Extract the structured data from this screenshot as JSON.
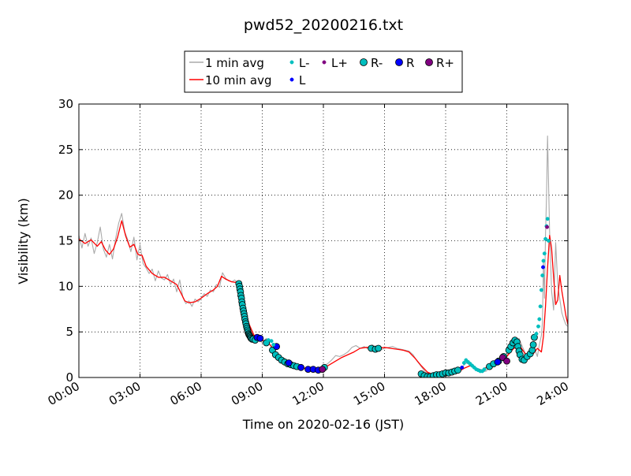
{
  "chart_data": {
    "type": "line",
    "title": "pwd52_20200216.txt",
    "xlabel": "Time on 2020-02-16 (JST)",
    "ylabel": "Visibility (km)",
    "xlim": [
      0,
      24
    ],
    "ylim": [
      0,
      30
    ],
    "grid": true,
    "legend_placement": "top-center",
    "x_ticks": [
      {
        "value": 0,
        "label": "00:00"
      },
      {
        "value": 3,
        "label": "03:00"
      },
      {
        "value": 6,
        "label": "06:00"
      },
      {
        "value": 9,
        "label": "09:00"
      },
      {
        "value": 12,
        "label": "12:00"
      },
      {
        "value": 15,
        "label": "15:00"
      },
      {
        "value": 18,
        "label": "18:00"
      },
      {
        "value": 21,
        "label": "21:00"
      },
      {
        "value": 24,
        "label": "24:00"
      }
    ],
    "y_ticks": [
      {
        "value": 0,
        "label": "0"
      },
      {
        "value": 5,
        "label": "5"
      },
      {
        "value": 10,
        "label": "10"
      },
      {
        "value": 15,
        "label": "15"
      },
      {
        "value": 20,
        "label": "20"
      },
      {
        "value": 25,
        "label": "25"
      },
      {
        "value": 30,
        "label": "30"
      }
    ],
    "legend": [
      {
        "key": "avg1",
        "label": "1 min avg",
        "kind": "line",
        "color": "#aaaaaa"
      },
      {
        "key": "avg10",
        "label": "10 min avg",
        "kind": "line",
        "color": "#ff0000"
      },
      {
        "key": "Lm",
        "label": "L-",
        "kind": "small",
        "color": "#00bfbf"
      },
      {
        "key": "L",
        "label": "L",
        "kind": "small",
        "color": "#0000ff"
      },
      {
        "key": "Lp",
        "label": "L+",
        "kind": "small",
        "color": "#800080"
      },
      {
        "key": "Rm",
        "label": "R-",
        "kind": "big",
        "color": "#00bfbf"
      },
      {
        "key": "R",
        "label": "R",
        "kind": "big",
        "color": "#0000ff"
      },
      {
        "key": "Rp",
        "label": "R+",
        "kind": "big",
        "color": "#800080"
      }
    ],
    "series": [
      {
        "name": "1 min avg",
        "color": "#aaaaaa",
        "x": [
          0,
          0.15,
          0.3,
          0.45,
          0.6,
          0.75,
          0.9,
          1.05,
          1.2,
          1.35,
          1.5,
          1.65,
          1.8,
          1.95,
          2.1,
          2.25,
          2.4,
          2.55,
          2.7,
          2.85,
          3.0,
          3.15,
          3.3,
          3.45,
          3.6,
          3.75,
          3.9,
          4.05,
          4.2,
          4.35,
          4.5,
          4.65,
          4.8,
          4.95,
          5.1,
          5.25,
          5.4,
          5.55,
          5.7,
          5.85,
          6.0,
          6.15,
          6.3,
          6.45,
          6.6,
          6.75,
          6.9,
          7.05,
          7.2,
          7.35,
          7.5,
          7.65,
          7.8,
          7.95,
          8.1,
          8.25,
          8.4,
          8.55,
          8.7,
          8.85,
          9.0,
          9.2,
          9.4,
          9.6,
          9.8,
          10.0,
          10.2,
          10.4,
          10.6,
          10.8,
          11.0,
          11.2,
          11.4,
          11.6,
          11.8,
          12.0,
          12.2,
          12.4,
          12.6,
          12.8,
          13.0,
          13.2,
          13.4,
          13.6,
          13.8,
          14.0,
          14.2,
          14.4,
          14.6,
          14.8,
          15.0,
          15.2,
          15.4,
          15.6,
          15.8,
          16.0,
          16.2,
          16.4,
          16.6,
          16.8,
          17.0,
          17.2,
          17.4,
          17.6,
          17.8,
          18.0,
          18.2,
          18.4,
          18.6,
          18.8,
          19.0,
          19.2,
          19.4,
          19.6,
          19.8,
          20.0,
          20.2,
          20.4,
          20.6,
          20.8,
          21.0,
          21.2,
          21.4,
          21.6,
          21.8,
          22.0,
          22.1,
          22.2,
          22.3,
          22.4,
          22.5,
          22.6,
          22.7,
          22.75,
          22.8,
          22.85,
          22.9,
          22.95,
          23.0,
          23.1,
          23.2,
          23.3,
          23.4,
          23.5,
          23.6,
          23.7,
          23.8,
          23.9,
          24.0
        ],
        "values": [
          15.6,
          14.2,
          15.8,
          14.4,
          15.3,
          13.6,
          14.8,
          16.5,
          14.1,
          13.2,
          14.6,
          13.0,
          15.2,
          16.9,
          18.0,
          16.0,
          15.1,
          13.8,
          15.4,
          12.9,
          14.6,
          12.5,
          12.0,
          11.4,
          11.9,
          10.6,
          11.7,
          10.9,
          10.7,
          11.3,
          10.2,
          10.8,
          9.4,
          10.7,
          8.8,
          8.1,
          8.4,
          7.8,
          8.6,
          8.3,
          8.7,
          9.2,
          8.9,
          9.6,
          9.4,
          10.2,
          9.9,
          11.5,
          10.9,
          10.6,
          10.5,
          10.7,
          10.3,
          9.6,
          7.4,
          6.3,
          5.0,
          4.5,
          4.7,
          4.2,
          3.8,
          4.3,
          3.5,
          2.6,
          2.1,
          1.8,
          1.6,
          1.4,
          1.1,
          1.0,
          1.0,
          0.9,
          0.8,
          0.7,
          0.8,
          1.2,
          1.5,
          1.9,
          2.4,
          2.3,
          2.5,
          2.8,
          3.3,
          3.5,
          3.2,
          3.4,
          3.1,
          3.6,
          3.3,
          3.0,
          3.2,
          3.3,
          3.4,
          3.2,
          3.1,
          3.0,
          2.9,
          2.5,
          1.8,
          1.2,
          0.6,
          0.4,
          0.2,
          0.1,
          0.1,
          0.2,
          0.3,
          0.4,
          0.7,
          1.1,
          1.6,
          1.4,
          1.0,
          0.8,
          0.6,
          0.7,
          1.4,
          1.8,
          1.7,
          2.1,
          2.4,
          3.1,
          3.8,
          4.3,
          3.2,
          2.2,
          2.0,
          2.6,
          3.4,
          2.9,
          2.3,
          3.6,
          4.6,
          6.0,
          12.8,
          8.7,
          15.6,
          19.9,
          26.5,
          16.0,
          9.5,
          7.4,
          14.8,
          10.2,
          8.6,
          7.1,
          6.4,
          5.8,
          5.6
        ]
      },
      {
        "name": "10 min avg",
        "color": "#ff0000",
        "x": [
          0,
          0.3,
          0.6,
          0.9,
          1.1,
          1.3,
          1.5,
          1.7,
          1.9,
          2.1,
          2.3,
          2.5,
          2.7,
          2.9,
          3.1,
          3.3,
          3.6,
          3.9,
          4.2,
          4.5,
          4.8,
          5.0,
          5.2,
          5.4,
          5.7,
          6.0,
          6.3,
          6.6,
          6.8,
          7.0,
          7.2,
          7.5,
          7.8,
          8.0,
          8.2,
          8.4,
          8.6,
          8.8,
          9.0,
          9.3,
          9.6,
          9.9,
          10.2,
          10.5,
          10.8,
          11.1,
          11.4,
          11.7,
          12.0,
          12.3,
          12.6,
          12.9,
          13.2,
          13.5,
          13.8,
          14.1,
          14.4,
          14.7,
          15.0,
          15.3,
          15.6,
          15.9,
          16.2,
          16.5,
          16.8,
          17.1,
          17.4,
          17.7,
          18.0,
          18.3,
          18.6,
          18.9,
          19.2,
          19.5,
          19.8,
          20.1,
          20.4,
          20.7,
          21.0,
          21.3,
          21.6,
          21.9,
          22.2,
          22.5,
          22.7,
          22.8,
          22.9,
          23.0,
          23.1,
          23.2,
          23.3,
          23.4,
          23.5,
          23.6,
          23.7,
          23.8,
          23.9,
          24.0
        ],
        "values": [
          15.2,
          14.7,
          15.1,
          14.4,
          14.9,
          14.0,
          13.5,
          14.1,
          15.4,
          17.2,
          15.5,
          14.3,
          14.6,
          13.5,
          13.4,
          12.2,
          11.4,
          11.0,
          11.0,
          10.6,
          10.2,
          9.3,
          8.4,
          8.2,
          8.3,
          8.7,
          9.2,
          9.6,
          10.0,
          11.1,
          10.8,
          10.5,
          10.4,
          8.7,
          6.9,
          5.6,
          4.6,
          4.4,
          4.1,
          3.8,
          3.0,
          2.2,
          1.8,
          1.5,
          1.3,
          1.0,
          0.9,
          0.8,
          1.0,
          1.4,
          1.8,
          2.2,
          2.5,
          2.8,
          3.2,
          3.3,
          3.3,
          3.2,
          3.3,
          3.2,
          3.1,
          3.0,
          2.8,
          2.1,
          1.3,
          0.6,
          0.3,
          0.2,
          0.2,
          0.3,
          0.6,
          1.0,
          1.3,
          1.0,
          0.8,
          1.3,
          1.7,
          1.9,
          2.3,
          3.1,
          3.6,
          2.6,
          2.3,
          3.2,
          2.8,
          4.5,
          7.8,
          12.0,
          15.6,
          14.2,
          11.0,
          8.0,
          8.5,
          11.2,
          9.5,
          8.2,
          6.8,
          5.8
        ]
      }
    ],
    "markers": [
      {
        "type": "Rm",
        "x": [
          7.85,
          7.88,
          7.9,
          7.93,
          7.95,
          7.98,
          8.0,
          8.02,
          8.05,
          8.08,
          8.1,
          8.13,
          8.15,
          8.18,
          8.2,
          8.23,
          8.25,
          8.28,
          8.3,
          8.33,
          8.35,
          8.38,
          8.4,
          8.43,
          8.45,
          8.5,
          8.55,
          8.65,
          9.2,
          9.5,
          9.65,
          9.8,
          9.95,
          10.1,
          10.25,
          10.4,
          10.55,
          10.7,
          12.05,
          14.35,
          14.55,
          14.7,
          16.8,
          16.95,
          17.1,
          17.25,
          17.4,
          17.55,
          17.7,
          17.85,
          18.0,
          18.15,
          18.3,
          18.45,
          18.6,
          20.15,
          20.35,
          20.6,
          20.85,
          21.1,
          21.2,
          21.3,
          21.4,
          21.5,
          21.55,
          21.6,
          21.65,
          21.75,
          21.85,
          22.0,
          22.15,
          22.25,
          22.3,
          22.35
        ],
        "y": [
          10.3,
          10.0,
          9.7,
          9.4,
          9.0,
          8.7,
          8.3,
          8.0,
          7.6,
          7.3,
          7.0,
          6.7,
          6.4,
          6.1,
          5.9,
          5.6,
          5.4,
          5.2,
          5.0,
          4.8,
          4.7,
          4.6,
          4.5,
          4.4,
          4.3,
          4.2,
          4.2,
          4.1,
          3.8,
          3.0,
          2.5,
          2.2,
          1.9,
          1.7,
          1.5,
          1.4,
          1.3,
          1.2,
          1.1,
          3.2,
          3.1,
          3.2,
          0.4,
          0.2,
          0.1,
          0.1,
          0.2,
          0.3,
          0.3,
          0.4,
          0.5,
          0.5,
          0.6,
          0.7,
          0.8,
          1.2,
          1.5,
          1.8,
          2.3,
          3.0,
          3.4,
          3.8,
          4.1,
          3.9,
          3.4,
          2.9,
          2.5,
          2.0,
          1.9,
          2.3,
          2.6,
          3.0,
          3.6,
          4.4
        ]
      },
      {
        "type": "R",
        "x": [
          8.75,
          8.9,
          9.7,
          10.3,
          10.9,
          11.25,
          11.5,
          11.75,
          20.55
        ],
        "y": [
          4.4,
          4.3,
          3.4,
          1.6,
          1.1,
          0.9,
          0.9,
          0.8,
          1.7
        ]
      },
      {
        "type": "Rp",
        "x": [
          11.95,
          20.8,
          21.0
        ],
        "y": [
          0.9,
          2.2,
          1.8
        ]
      },
      {
        "type": "Lm",
        "x": [
          9.3,
          9.45,
          9.55,
          18.9,
          19.0,
          19.1,
          19.2,
          19.3,
          19.4,
          19.5,
          19.6,
          19.7,
          19.8,
          19.9,
          22.45,
          22.55,
          22.6,
          22.65,
          22.7,
          22.75,
          22.8,
          22.85,
          22.9,
          22.95,
          23.0,
          23.05
        ],
        "y": [
          4.1,
          4.0,
          3.6,
          1.6,
          1.9,
          1.7,
          1.5,
          1.3,
          1.1,
          0.9,
          0.8,
          0.7,
          0.7,
          0.9,
          4.8,
          5.6,
          6.4,
          7.8,
          9.6,
          11.2,
          12.8,
          13.6,
          15.2,
          16.6,
          17.4,
          15.0
        ]
      },
      {
        "type": "L",
        "x": [
          18.8,
          22.78
        ],
        "y": [
          1.1,
          12.1
        ]
      },
      {
        "type": "Lp",
        "x": [
          22.98
        ],
        "y": [
          16.5
        ]
      }
    ]
  }
}
